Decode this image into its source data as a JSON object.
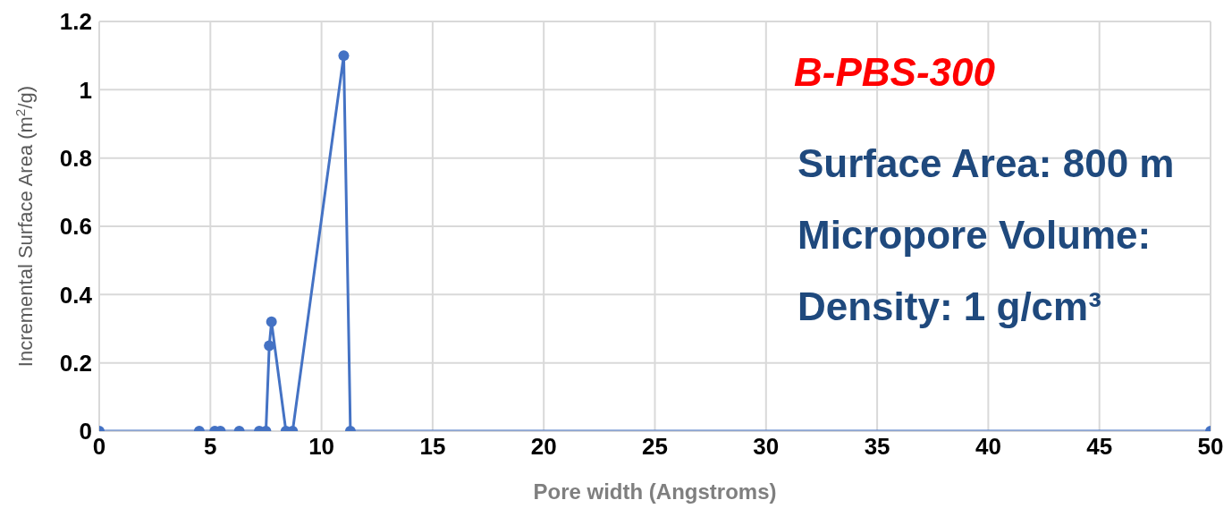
{
  "chart_data": {
    "type": "line",
    "title": "B-PBS-300",
    "xlabel": "Pore width (Angstroms)",
    "ylabel": "Incremental Surface Area (m$^{2}$/g)",
    "annotations": [
      "Surface Area: 800 m",
      "Micropore Volume:",
      "Density: 1 g/cm³"
    ],
    "x": [
      0,
      4.5,
      5.2,
      5.45,
      6.3,
      7.2,
      7.5,
      7.65,
      7.75,
      8.4,
      8.7,
      11.0,
      11.3,
      50
    ],
    "series": [
      {
        "color": "#4472c4",
        "values": [
          0,
          0,
          0,
          0,
          0,
          0,
          0,
          0.25,
          0.32,
          0,
          0,
          1.1,
          0,
          0
        ]
      }
    ],
    "xlim": [
      0,
      50
    ],
    "xticks": [
      0,
      5,
      10,
      15,
      20,
      25,
      30,
      35,
      40,
      45,
      50
    ],
    "ylim": [
      0,
      1.2
    ],
    "yticks": [
      0,
      0.2,
      0.4,
      0.6,
      0.8,
      1,
      1.2
    ],
    "grid": true,
    "marker": "circle",
    "legend": false
  }
}
